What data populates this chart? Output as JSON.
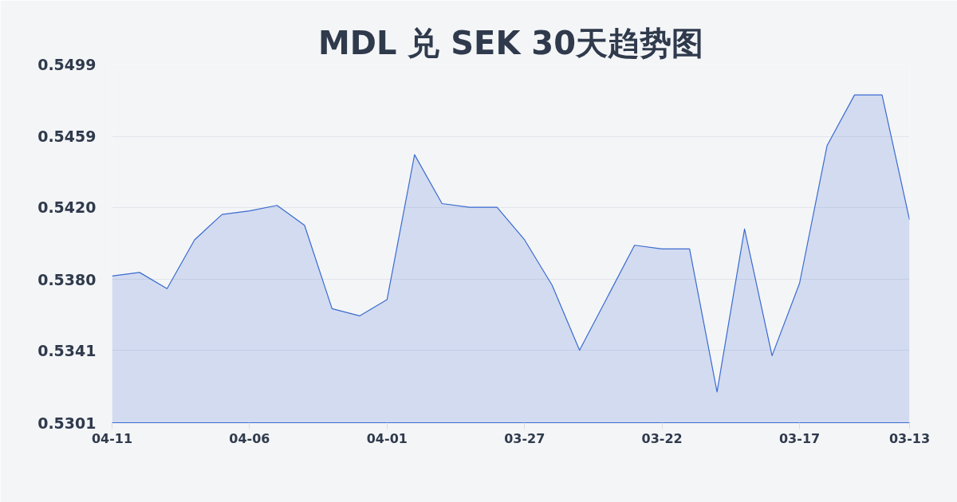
{
  "chart_data": {
    "type": "area",
    "title": "MDL 兑 SEK 30天趋势图",
    "categories": [
      "04-11",
      null,
      null,
      null,
      null,
      "04-06",
      null,
      null,
      null,
      null,
      "04-01",
      null,
      null,
      null,
      null,
      "03-27",
      null,
      null,
      null,
      null,
      "03-22",
      null,
      null,
      null,
      null,
      "03-17",
      null,
      null,
      null,
      "03-13"
    ],
    "series": [
      {
        "color": "#3a6bd0",
        "values": [
          0.5382,
          0.5384,
          0.5375,
          0.5402,
          0.5416,
          0.5418,
          0.5421,
          0.541,
          0.5364,
          0.536,
          0.5369,
          0.5449,
          0.5422,
          0.542,
          0.542,
          0.5402,
          0.5377,
          0.5341,
          0.537,
          0.5399,
          0.5397,
          0.5397,
          0.5318,
          0.5408,
          0.5338,
          0.5378,
          0.5454,
          0.5482,
          0.5482,
          0.5413
        ]
      }
    ],
    "ylim": [
      0.5301,
      0.5499
    ],
    "yticks": [
      0.5301,
      0.5341,
      {
        "value": 0.538,
        "label": "0.5380"
      },
      {
        "value": 0.542,
        "label": "0.5420"
      },
      0.5459,
      0.5499
    ],
    "grid": "y"
  }
}
